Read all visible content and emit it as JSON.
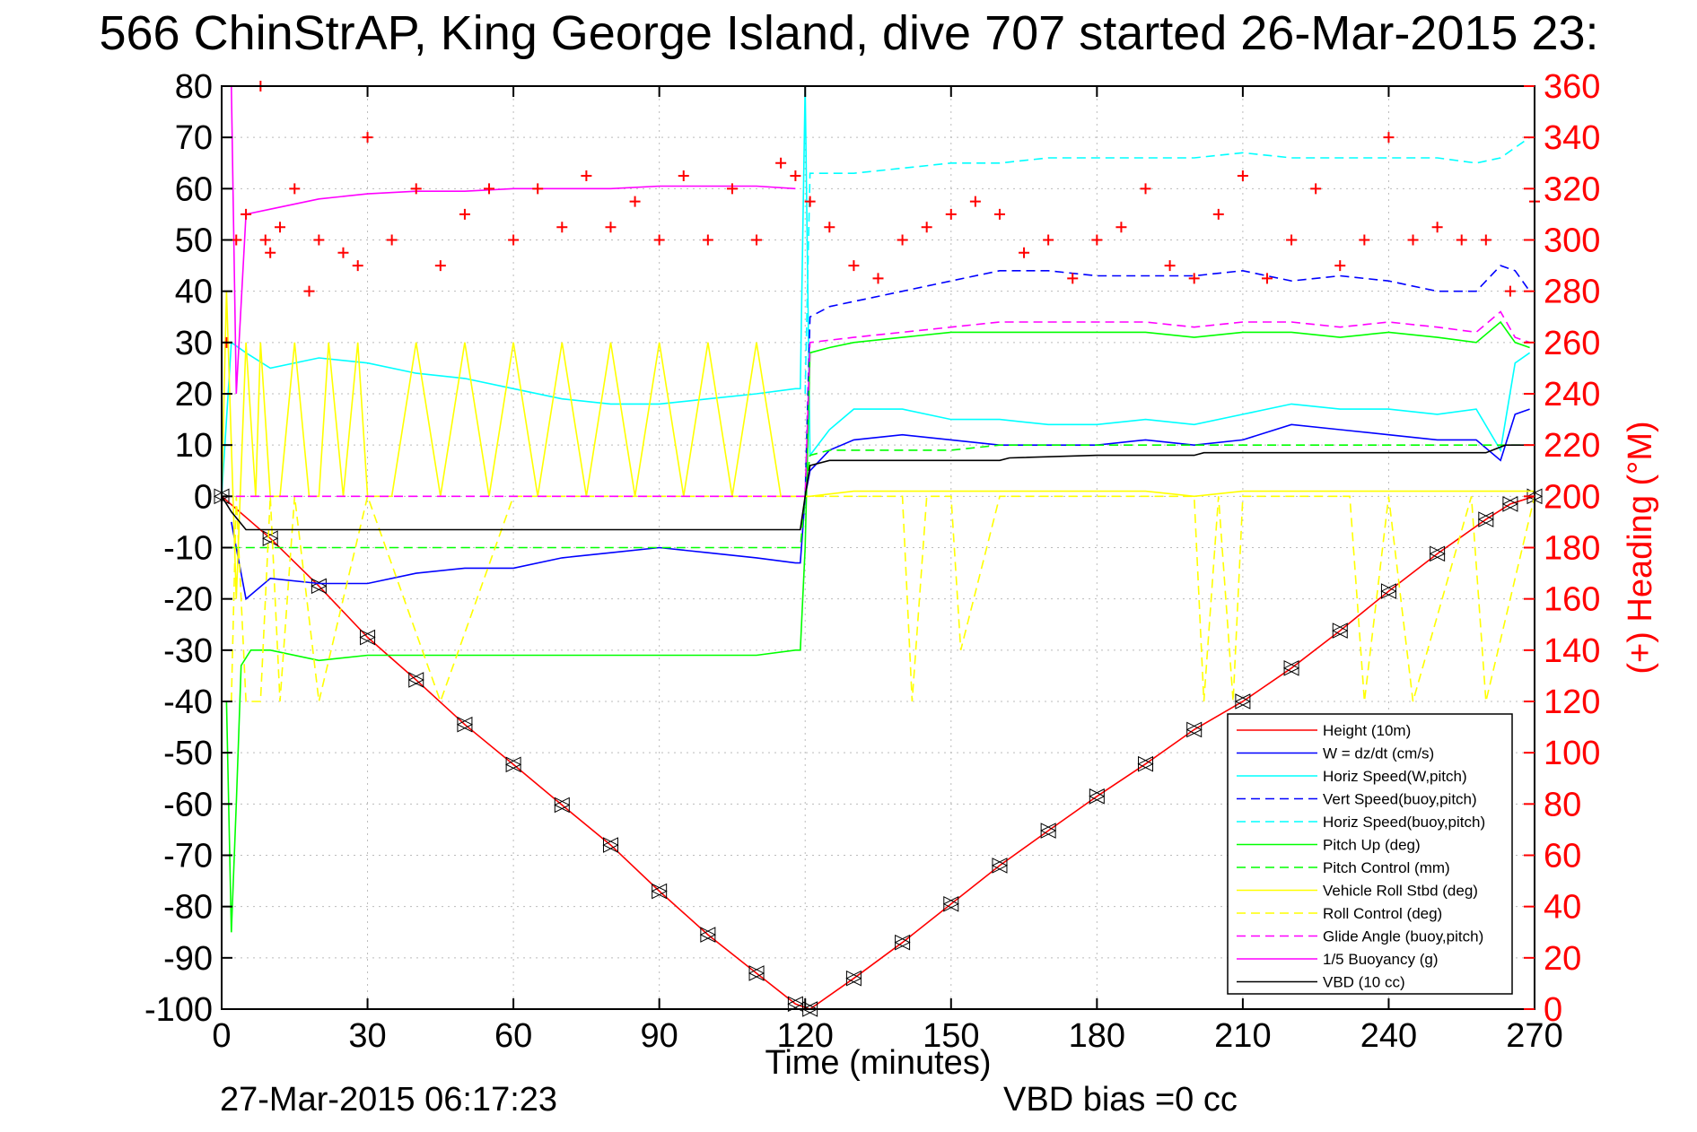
{
  "chart_data": {
    "type": "line",
    "title": "566 ChinStrAP, King George Island, dive 707 started 26-Mar-2015 23:",
    "xlabel": "Time (minutes)",
    "ylabel_right": "(+) Heading (°M)",
    "footer_left": "27-Mar-2015 06:17:23",
    "footer_right": "VBD bias =0 cc",
    "xlim": [
      0,
      270
    ],
    "ylim": [
      -100,
      80
    ],
    "ylim_right": [
      0,
      360
    ],
    "x_ticks": [
      0,
      30,
      60,
      90,
      120,
      150,
      180,
      210,
      240,
      270
    ],
    "y_ticks": [
      80,
      70,
      60,
      50,
      40,
      30,
      20,
      10,
      0,
      -10,
      -20,
      -30,
      -40,
      -50,
      -60,
      -70,
      -80,
      -90,
      -100
    ],
    "y_ticks_right": [
      360,
      340,
      320,
      300,
      280,
      260,
      240,
      220,
      200,
      180,
      160,
      140,
      120,
      100,
      80,
      60,
      40,
      20,
      0
    ],
    "grid": true,
    "legend_position": "bottom-right",
    "series": [
      {
        "name": "Height (10m)",
        "color": "#ff0000",
        "style": "solid",
        "marker": "triangle",
        "x": [
          0,
          10,
          20,
          30,
          40,
          50,
          60,
          70,
          80,
          90,
          100,
          110,
          118,
          121,
          130,
          140,
          150,
          160,
          170,
          180,
          190,
          200,
          210,
          220,
          230,
          240,
          250,
          260,
          265,
          270
        ],
        "y": [
          0,
          -8.2,
          -17.5,
          -27.5,
          -35.8,
          -44.5,
          -52.3,
          -60.2,
          -68,
          -77,
          -85.5,
          -93,
          -99,
          -100,
          -94,
          -87,
          -79.5,
          -72,
          -65.2,
          -58.5,
          -52.2,
          -45.5,
          -40,
          -33.5,
          -26.2,
          -18.5,
          -11.2,
          -4.5,
          -1.5,
          0
        ]
      },
      {
        "name": "W = dz/dt (cm/s)",
        "color": "#0000ff",
        "style": "solid",
        "x": [
          2,
          5,
          10,
          20,
          30,
          40,
          50,
          60,
          70,
          80,
          90,
          100,
          110,
          118,
          119,
          120,
          121,
          125,
          130,
          140,
          150,
          160,
          170,
          180,
          190,
          200,
          210,
          220,
          230,
          240,
          250,
          258,
          263,
          266,
          269
        ],
        "y": [
          -5,
          -20,
          -16,
          -17,
          -17,
          -15,
          -14,
          -14,
          -12,
          -11,
          -10,
          -11,
          -12,
          -13,
          -13,
          0,
          5,
          9,
          11,
          12,
          11,
          10,
          10,
          10,
          11,
          10,
          11,
          14,
          13,
          12,
          11,
          11,
          7,
          16,
          17
        ]
      },
      {
        "name": "Horiz Speed(W,pitch)",
        "color": "#00ffff",
        "style": "solid",
        "x": [
          0,
          2,
          5,
          10,
          20,
          30,
          40,
          50,
          60,
          70,
          80,
          90,
          100,
          110,
          118,
          119,
          120,
          121,
          125,
          130,
          140,
          150,
          160,
          170,
          180,
          190,
          200,
          210,
          220,
          230,
          240,
          250,
          258,
          263,
          266,
          269
        ],
        "y": [
          0,
          30,
          28,
          25,
          27,
          26,
          24,
          23,
          21,
          19,
          18,
          18,
          19,
          20,
          21,
          21,
          80,
          8,
          13,
          17,
          17,
          15,
          15,
          14,
          14,
          15,
          14,
          16,
          18,
          17,
          17,
          16,
          17,
          9,
          26,
          28
        ]
      },
      {
        "name": "Vert Speed(buoy,pitch)",
        "color": "#0000ff",
        "style": "dashed",
        "x": [
          120,
          121,
          125,
          130,
          140,
          150,
          160,
          170,
          180,
          190,
          200,
          210,
          220,
          230,
          240,
          250,
          258,
          263,
          266,
          269
        ],
        "y": [
          0,
          35,
          37,
          38,
          40,
          42,
          44,
          44,
          43,
          43,
          43,
          44,
          42,
          43,
          42,
          40,
          40,
          45,
          44,
          40
        ]
      },
      {
        "name": "Horiz Speed(buoy,pitch)",
        "color": "#00ffff",
        "style": "dashed",
        "x": [
          120,
          121,
          125,
          130,
          140,
          150,
          160,
          170,
          180,
          190,
          200,
          210,
          220,
          230,
          240,
          250,
          258,
          263,
          266,
          269
        ],
        "y": [
          20,
          63,
          63,
          63,
          64,
          65,
          65,
          66,
          66,
          66,
          66,
          67,
          66,
          66,
          66,
          66,
          65,
          66,
          68,
          70
        ]
      },
      {
        "name": "Pitch Up (deg)",
        "color": "#00ff00",
        "style": "solid",
        "x": [
          1,
          2,
          3,
          4,
          6,
          10,
          20,
          30,
          40,
          50,
          60,
          70,
          80,
          90,
          100,
          110,
          118,
          119,
          120,
          121,
          125,
          130,
          140,
          150,
          160,
          170,
          180,
          190,
          200,
          210,
          220,
          230,
          240,
          250,
          258,
          263,
          266,
          269
        ],
        "y": [
          -40,
          -85,
          -60,
          -33,
          -30,
          -30,
          -32,
          -31,
          -31,
          -31,
          -31,
          -31,
          -31,
          -31,
          -31,
          -31,
          -30,
          -30,
          -10,
          28,
          29,
          30,
          31,
          32,
          32,
          32,
          32,
          32,
          31,
          32,
          32,
          31,
          32,
          31,
          30,
          34,
          30,
          29
        ]
      },
      {
        "name": "Pitch Control (mm)",
        "color": "#00ff00",
        "style": "dashed",
        "x": [
          2,
          5,
          10,
          20,
          30,
          40,
          50,
          60,
          70,
          80,
          90,
          100,
          110,
          118,
          119,
          120,
          121,
          125,
          130,
          140,
          150,
          160,
          170,
          180,
          190,
          200,
          210,
          220,
          230,
          240,
          250,
          258,
          263,
          266,
          269
        ],
        "y": [
          -10,
          -10,
          -10,
          -10,
          -10,
          -10,
          -10,
          -10,
          -10,
          -10,
          -10,
          -10,
          -10,
          -10,
          -10,
          0,
          8,
          9,
          9,
          9,
          9,
          10,
          10,
          10,
          10,
          10,
          10,
          10,
          10,
          10,
          10,
          10,
          10,
          10,
          10
        ]
      },
      {
        "name": "Vehicle Roll Stbd (deg)",
        "color": "#ffff00",
        "style": "solid",
        "x": [
          0,
          1,
          2,
          3,
          5,
          7,
          8,
          10,
          12,
          15,
          18,
          20,
          22,
          25,
          28,
          30,
          35,
          40,
          45,
          50,
          55,
          60,
          65,
          70,
          75,
          80,
          85,
          90,
          95,
          100,
          105,
          110,
          115,
          118,
          121,
          130,
          140,
          150,
          160,
          170,
          180,
          190,
          200,
          210,
          220,
          230,
          240,
          250,
          260,
          265,
          270
        ],
        "y": [
          0,
          40,
          10,
          -20,
          30,
          0,
          30,
          0,
          0,
          30,
          0,
          0,
          30,
          0,
          30,
          0,
          0,
          30,
          0,
          30,
          0,
          30,
          0,
          30,
          0,
          30,
          0,
          30,
          0,
          30,
          0,
          30,
          0,
          0,
          0,
          1,
          1,
          1,
          1,
          1,
          1,
          1,
          0,
          1,
          1,
          1,
          1,
          1,
          1,
          1,
          1
        ]
      },
      {
        "name": "Roll Control (deg)",
        "color": "#ffff00",
        "style": "dashed",
        "x": [
          2,
          3,
          5,
          8,
          10,
          12,
          15,
          20,
          30,
          45,
          60,
          80,
          100,
          118,
          121,
          140,
          142,
          145,
          150,
          152,
          160,
          180,
          200,
          202,
          205,
          208,
          210,
          220,
          232,
          235,
          240,
          245,
          257,
          260,
          270
        ],
        "y": [
          -40,
          0,
          -40,
          -40,
          0,
          -40,
          0,
          -40,
          0,
          -40,
          0,
          0,
          0,
          0,
          0,
          0,
          -40,
          0,
          0,
          -30,
          0,
          0,
          0,
          -40,
          0,
          -40,
          0,
          0,
          0,
          -40,
          0,
          -40,
          0,
          -40,
          0
        ]
      },
      {
        "name": "Glide Angle (buoy,pitch)",
        "color": "#ff00ff",
        "style": "dashed",
        "x": [
          0,
          20,
          40,
          60,
          80,
          100,
          118,
          120,
          121,
          130,
          140,
          150,
          160,
          170,
          180,
          190,
          200,
          210,
          220,
          230,
          240,
          250,
          258,
          263,
          266,
          269
        ],
        "y": [
          0,
          0,
          0,
          0,
          0,
          0,
          0,
          0,
          30,
          31,
          32,
          33,
          34,
          34,
          34,
          34,
          33,
          34,
          34,
          33,
          34,
          33,
          32,
          36,
          31,
          30
        ]
      },
      {
        "name": "1/5 Buoyancy (g)",
        "color": "#ff00ff",
        "style": "solid",
        "x": [
          2,
          3,
          5,
          10,
          20,
          30,
          40,
          50,
          60,
          70,
          80,
          90,
          100,
          110,
          118
        ],
        "y": [
          80,
          20,
          55,
          56,
          58,
          59,
          59.5,
          59.5,
          60,
          60,
          60,
          60.5,
          60.5,
          60.5,
          60
        ]
      },
      {
        "name": "VBD (10 cc)",
        "color": "#000000",
        "style": "solid",
        "x": [
          0,
          2,
          5,
          10,
          20,
          40,
          60,
          80,
          100,
          118,
          119,
          120,
          121,
          125,
          130,
          160,
          162,
          180,
          200,
          202,
          260,
          264,
          266,
          269
        ],
        "y": [
          0,
          -3,
          -6.5,
          -6.5,
          -6.5,
          -6.5,
          -6.5,
          -6.5,
          -6.5,
          -6.5,
          -6.5,
          0,
          6,
          7,
          7,
          7,
          7.5,
          8,
          8,
          8.5,
          8.5,
          10,
          10,
          10
        ]
      },
      {
        "name": "Heading (°M)",
        "color": "#ff0000",
        "style": "none",
        "marker": "plus",
        "axis": "right",
        "x": [
          1,
          3,
          5,
          8,
          9,
          10,
          12,
          15,
          18,
          20,
          25,
          28,
          30,
          35,
          40,
          45,
          50,
          55,
          60,
          65,
          70,
          75,
          80,
          85,
          90,
          95,
          100,
          105,
          110,
          115,
          118,
          121,
          125,
          130,
          135,
          140,
          145,
          150,
          155,
          160,
          165,
          170,
          175,
          180,
          185,
          190,
          195,
          200,
          205,
          210,
          215,
          220,
          225,
          230,
          235,
          240,
          245,
          250,
          255,
          260,
          265,
          270
        ],
        "y": [
          260,
          300,
          310,
          360,
          300,
          295,
          305,
          320,
          280,
          300,
          295,
          290,
          340,
          300,
          320,
          290,
          310,
          320,
          300,
          320,
          305,
          325,
          305,
          315,
          300,
          325,
          300,
          320,
          300,
          330,
          325,
          315,
          305,
          290,
          285,
          300,
          305,
          310,
          315,
          310,
          295,
          300,
          285,
          300,
          305,
          320,
          290,
          285,
          310,
          325,
          285,
          300,
          320,
          290,
          300,
          340,
          300,
          305,
          300,
          300,
          280,
          315
        ]
      }
    ]
  }
}
